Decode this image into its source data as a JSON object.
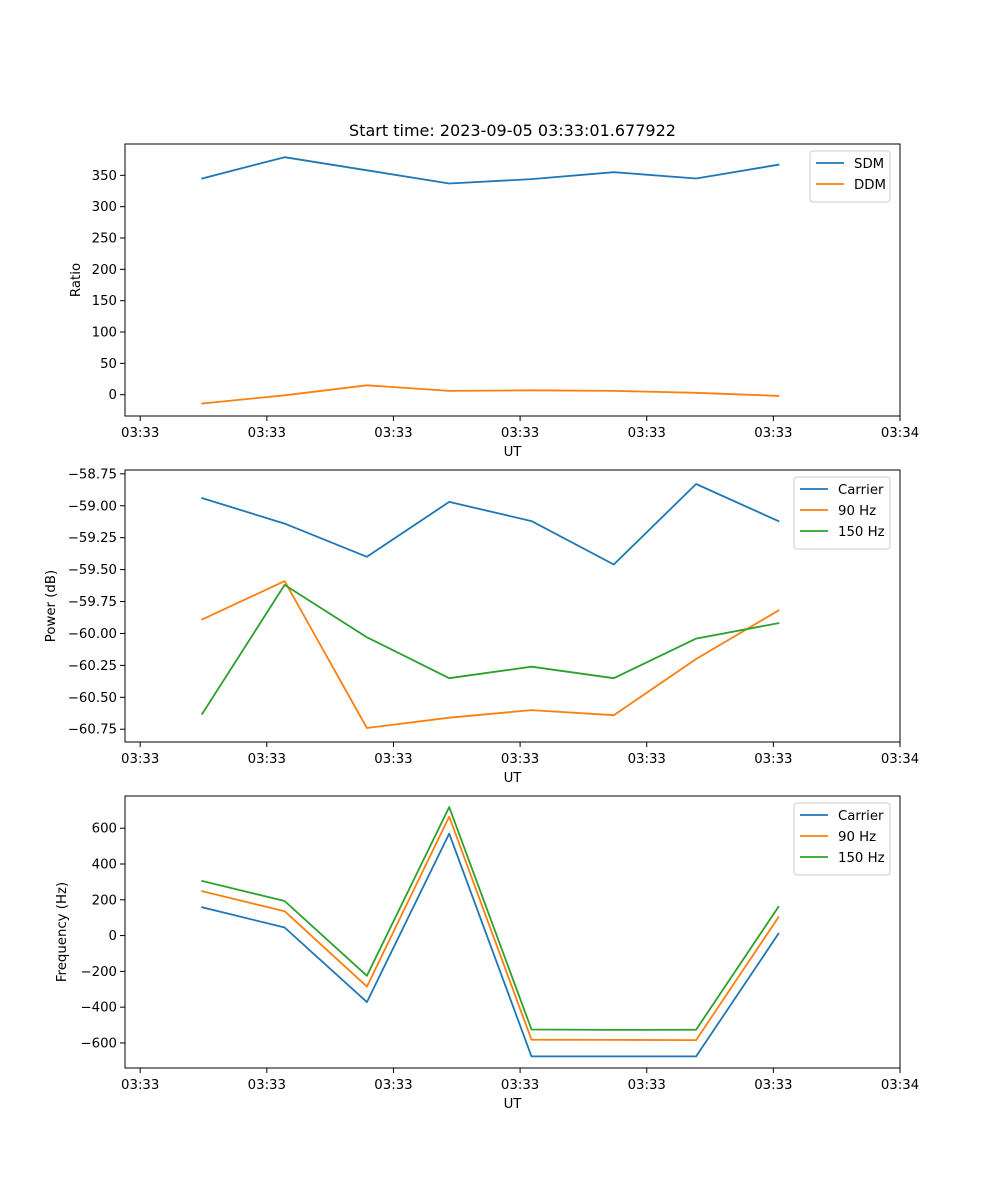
{
  "chart_data": [
    {
      "type": "line",
      "title": "Start time: 2023-09-05 03:33:01.677922",
      "xlabel": "UT",
      "ylabel": "Ratio",
      "x_tick_labels": [
        "03:33",
        "03:33",
        "03:33",
        "03:33",
        "03:33",
        "03:33",
        "03:34"
      ],
      "x_tick_positions": [
        0,
        1,
        2,
        3,
        4,
        5,
        6
      ],
      "xlim": [
        -0.12,
        6.0
      ],
      "ylim": [
        -34,
        400
      ],
      "y_ticks": [
        0,
        50,
        100,
        150,
        200,
        250,
        300,
        350
      ],
      "y_tick_labels": [
        "0",
        "50",
        "100",
        "150",
        "200",
        "250",
        "300",
        "350"
      ],
      "legend_position": "top-right",
      "x": [
        0.49,
        1.14,
        1.79,
        2.44,
        3.09,
        3.74,
        4.39,
        5.04
      ],
      "series": [
        {
          "name": "SDM",
          "color": "#1f77b4",
          "values": [
            345,
            379,
            358,
            337,
            344,
            355,
            345,
            367
          ]
        },
        {
          "name": "DDM",
          "color": "#ff7f0e",
          "values": [
            -14,
            -1,
            15,
            6,
            7,
            6,
            3,
            -2
          ]
        }
      ]
    },
    {
      "type": "line",
      "title": "",
      "xlabel": "UT",
      "ylabel": "Power (dB)",
      "x_tick_labels": [
        "03:33",
        "03:33",
        "03:33",
        "03:33",
        "03:33",
        "03:33",
        "03:34"
      ],
      "x_tick_positions": [
        0,
        1,
        2,
        3,
        4,
        5,
        6
      ],
      "xlim": [
        -0.12,
        6.0
      ],
      "ylim": [
        -60.85,
        -58.72
      ],
      "y_ticks": [
        -60.75,
        -60.5,
        -60.25,
        -60.0,
        -59.75,
        -59.5,
        -59.25,
        -59.0,
        -58.75
      ],
      "y_tick_labels": [
        "−60.75",
        "−60.50",
        "−60.25",
        "−60.00",
        "−59.75",
        "−59.50",
        "−59.25",
        "−59.00",
        "−58.75"
      ],
      "legend_position": "top-right",
      "x": [
        0.49,
        1.14,
        1.79,
        2.44,
        3.09,
        3.74,
        4.39,
        5.04
      ],
      "series": [
        {
          "name": "Carrier",
          "color": "#1f77b4",
          "values": [
            -58.94,
            -59.14,
            -59.4,
            -58.97,
            -59.12,
            -59.46,
            -58.83,
            -59.12
          ]
        },
        {
          "name": "90 Hz",
          "color": "#ff7f0e",
          "values": [
            -59.89,
            -59.59,
            -60.74,
            -60.66,
            -60.6,
            -60.64,
            -60.2,
            -59.82
          ]
        },
        {
          "name": "150 Hz",
          "color": "#2ca02c",
          "values": [
            -60.63,
            -59.62,
            -60.03,
            -60.35,
            -60.26,
            -60.35,
            -60.04,
            -59.92
          ]
        }
      ]
    },
    {
      "type": "line",
      "title": "",
      "xlabel": "UT",
      "ylabel": "Frequency (Hz)",
      "x_tick_labels": [
        "03:33",
        "03:33",
        "03:33",
        "03:33",
        "03:33",
        "03:33",
        "03:34"
      ],
      "x_tick_positions": [
        0,
        1,
        2,
        3,
        4,
        5,
        6
      ],
      "xlim": [
        -0.12,
        6.0
      ],
      "ylim": [
        -740,
        780
      ],
      "y_ticks": [
        -600,
        -400,
        -200,
        0,
        200,
        400,
        600
      ],
      "y_tick_labels": [
        "−600",
        "−400",
        "−200",
        "0",
        "200",
        "400",
        "600"
      ],
      "legend_position": "top-right",
      "x": [
        0.49,
        1.14,
        1.79,
        2.44,
        3.09,
        3.74,
        4.39,
        5.04
      ],
      "series": [
        {
          "name": "Carrier",
          "color": "#1f77b4",
          "values": [
            158,
            45,
            -372,
            570,
            -675,
            -675,
            -675,
            10
          ]
        },
        {
          "name": "90 Hz",
          "color": "#ff7f0e",
          "values": [
            248,
            136,
            -285,
            665,
            -582,
            -583,
            -584,
            102
          ]
        },
        {
          "name": "150 Hz",
          "color": "#2ca02c",
          "values": [
            305,
            193,
            -225,
            718,
            -525,
            -527,
            -526,
            160
          ]
        }
      ]
    }
  ]
}
